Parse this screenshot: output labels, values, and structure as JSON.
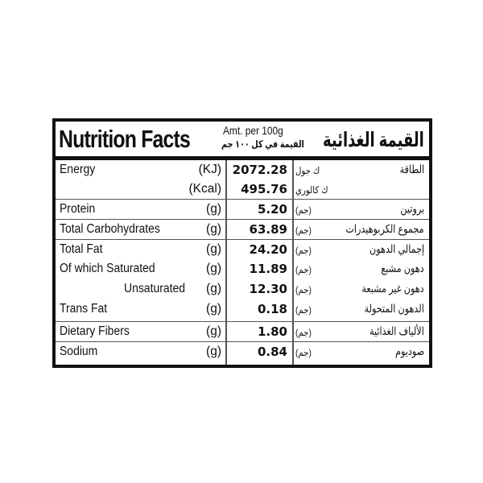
{
  "header": {
    "title_en": "Nutrition Facts",
    "amount_en": "Amt. per 100g",
    "amount_ar": "القيمة في كل ١٠٠ جم",
    "title_ar": "القيمة الغذائية"
  },
  "rows": [
    {
      "label_en": "Energy",
      "unit": "(KJ)",
      "value": "2072.28",
      "unit_ar": "ك جول",
      "label_ar": "الطاقة"
    },
    {
      "label_en": "",
      "unit": "(Kcal)",
      "value": "495.76",
      "unit_ar": "ك كالوري",
      "label_ar": ""
    },
    {
      "label_en": "Protein",
      "unit": "(g)",
      "value": "5.20",
      "unit_ar": "(جم)",
      "label_ar": "بروتين"
    },
    {
      "label_en": "Total Carbohydrates",
      "unit": "(g)",
      "value": "63.89",
      "unit_ar": "(جم)",
      "label_ar": "مجموع الكربوهيدرات"
    },
    {
      "label_en": "Total Fat",
      "unit": "(g)",
      "value": "24.20",
      "unit_ar": "(جم)",
      "label_ar": "إجمالي الدهون"
    },
    {
      "label_en": "Of which  Saturated",
      "unit": "(g)",
      "value": "11.89",
      "unit_ar": "(جم)",
      "label_ar": "دهون مشبع"
    },
    {
      "label_en": "Unsaturated",
      "unit": "(g)",
      "value": "12.30",
      "unit_ar": "(جم)",
      "label_ar": "دهون غير مشبعة"
    },
    {
      "label_en": "Trans Fat",
      "unit": "(g)",
      "value": "0.18",
      "unit_ar": "(جم)",
      "label_ar": "الدهون المتحولة"
    },
    {
      "label_en": "Dietary Fibers",
      "unit": "(g)",
      "value": "1.80",
      "unit_ar": "(جم)",
      "label_ar": "الألياف الغذائية"
    },
    {
      "label_en": "Sodium",
      "unit": "(g)",
      "value": "0.84",
      "unit_ar": "(جم)",
      "label_ar": "صوديوم"
    }
  ]
}
